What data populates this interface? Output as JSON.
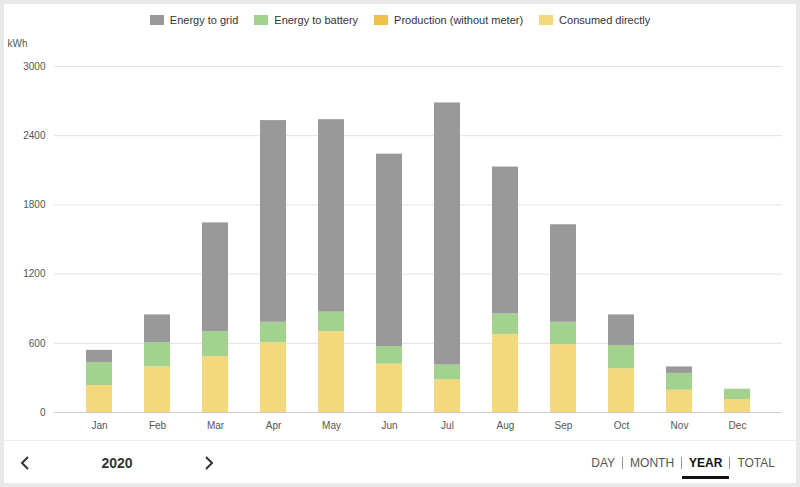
{
  "chart_data": {
    "type": "bar",
    "stacked": true,
    "legend": "top",
    "grid": true,
    "y_label": "kWh",
    "categories": [
      "Jan",
      "Feb",
      "Mar",
      "Apr",
      "May",
      "Jun",
      "Jul",
      "Aug",
      "Sep",
      "Oct",
      "Nov",
      "Dec"
    ],
    "series": [
      {
        "name": "Energy to grid",
        "color": "#999999",
        "values": [
          105,
          241,
          943,
          1749,
          1669,
          1668,
          2273,
          1274,
          846,
          266,
          56,
          0
        ]
      },
      {
        "name": "Energy to battery",
        "color": "#a3d18e",
        "values": [
          200,
          210,
          217,
          177,
          169,
          153,
          129,
          177,
          194,
          201,
          146,
          89
        ]
      },
      {
        "name": "Production (without meter)",
        "color": "#efc14a",
        "values": [
          0,
          0,
          0,
          0,
          0,
          0,
          0,
          0,
          0,
          0,
          0,
          0
        ]
      },
      {
        "name": "Consumed directly",
        "color": "#f4d87c",
        "values": [
          234,
          395,
          484,
          605,
          701,
          419,
          282,
          677,
          588,
          379,
          193,
          113
        ]
      }
    ],
    "ylim": [
      0,
      3000
    ],
    "yticks": [
      0,
      600,
      1200,
      1800,
      2400,
      3000
    ]
  },
  "period_selector": {
    "year": "2020",
    "views": [
      "DAY",
      "MONTH",
      "YEAR",
      "TOTAL"
    ],
    "active": "YEAR"
  }
}
